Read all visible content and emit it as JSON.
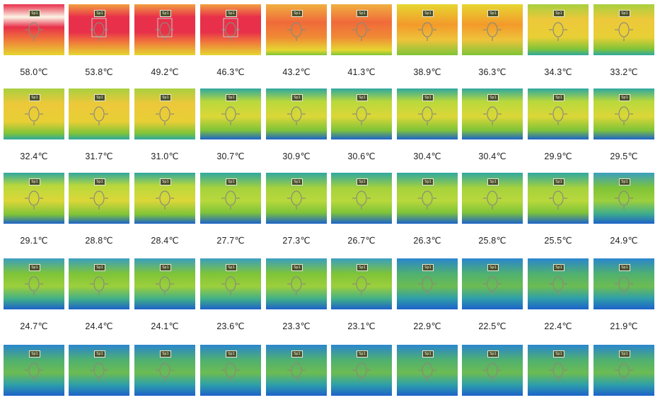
{
  "spot_label": "Sp1",
  "temperatures": [
    "58.0℃",
    "53.8℃",
    "49.2℃",
    "46.3℃",
    "43.2℃",
    "41.3℃",
    "38.9℃",
    "36.3℃",
    "34.3℃",
    "33.2℃",
    "32.4℃",
    "31.7℃",
    "31.0℃",
    "30.7℃",
    "30.9℃",
    "30.6℃",
    "30.4℃",
    "30.4℃",
    "29.9℃",
    "29.5℃",
    "29.1℃",
    "28.8℃",
    "28.4℃",
    "27.7℃",
    "27.3℃",
    "26.7℃",
    "26.3℃",
    "25.8℃",
    "25.5℃",
    "24.9℃",
    "24.7℃",
    "24.4℃",
    "24.1℃",
    "23.6℃",
    "23.3℃",
    "23.1℃",
    "22.9℃",
    "22.5℃",
    "22.4℃",
    "21.9℃"
  ],
  "colors": {
    "hot_white": "#fbf4e6",
    "hot_red": "#e8304a",
    "orange": "#f39a2a",
    "yellow": "#e6d631",
    "green": "#7fc438",
    "teal": "#2fa8a0",
    "blue": "#1d62c9"
  }
}
